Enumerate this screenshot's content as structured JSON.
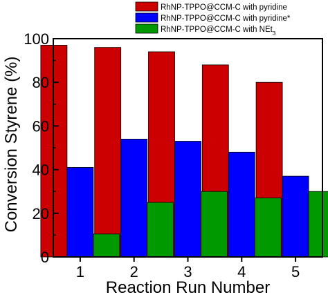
{
  "chart_data": {
    "type": "bar",
    "categories": [
      "1",
      "2",
      "3",
      "4",
      "5"
    ],
    "series": [
      {
        "name": "RhNP-TPPO@CCM-C with pyridine",
        "color": "#cc0000",
        "values": [
          97,
          96,
          94,
          88,
          80
        ]
      },
      {
        "name": "RhNP-TPPO@CCM-C with pyridine*",
        "color": "#0000ff",
        "values": [
          41,
          54,
          53,
          48,
          37
        ]
      },
      {
        "name": "RhNP-TPPO@CCM-C with NEt3",
        "color": "#009900",
        "values": [
          10.5,
          25,
          30,
          27,
          30
        ]
      }
    ],
    "title": "",
    "xlabel": "Reaction Run Number",
    "ylabel": "Conversion Styrene (%)",
    "ylim": [
      0,
      100
    ],
    "yticks": [
      0,
      20,
      40,
      60,
      80,
      100
    ],
    "legend_position": "top-right",
    "grid": false
  }
}
